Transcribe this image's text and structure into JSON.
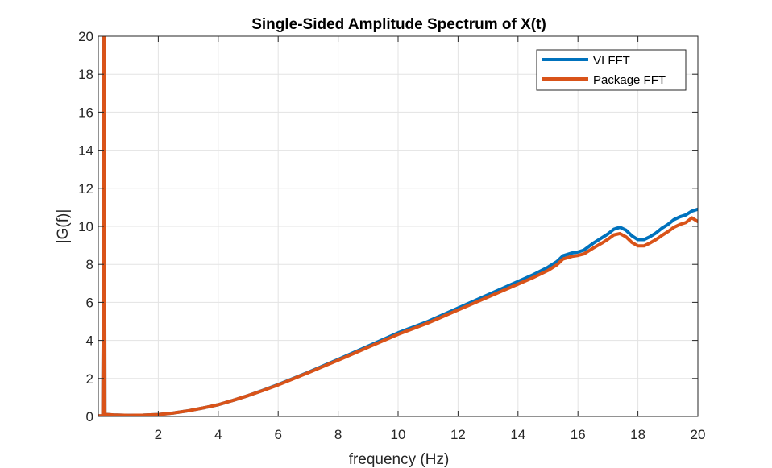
{
  "chart_data": {
    "type": "line",
    "title": "Single-Sided Amplitude Spectrum of X(t)",
    "xlabel": "frequency (Hz)",
    "ylabel": "|G(f)|",
    "xlim": [
      0,
      20
    ],
    "ylim": [
      0,
      20
    ],
    "xticks": [
      2,
      4,
      6,
      8,
      10,
      12,
      14,
      16,
      18,
      20
    ],
    "yticks": [
      0,
      2,
      4,
      6,
      8,
      10,
      12,
      14,
      16,
      18,
      20
    ],
    "grid": true,
    "legend_position": "top-right",
    "series": [
      {
        "name": "VI FFT",
        "color": "#0072BD",
        "x": [
          0.0,
          0.15,
          0.18,
          0.19,
          0.2,
          0.22,
          0.3,
          0.5,
          1.0,
          1.5,
          2.0,
          2.5,
          3.0,
          3.5,
          4.0,
          4.5,
          5.0,
          5.5,
          6.0,
          6.5,
          7.0,
          7.5,
          8.0,
          8.5,
          9.0,
          9.5,
          10.0,
          10.5,
          11.0,
          11.5,
          12.0,
          12.5,
          13.0,
          13.5,
          14.0,
          14.5,
          15.0,
          15.3,
          15.5,
          15.8,
          16.0,
          16.2,
          16.5,
          16.8,
          17.0,
          17.2,
          17.4,
          17.6,
          17.8,
          18.0,
          18.2,
          18.4,
          18.6,
          18.8,
          19.0,
          19.2,
          19.4,
          19.6,
          19.8,
          20.0
        ],
        "y": [
          0.03,
          0.03,
          10.0,
          20.5,
          20.5,
          0.1,
          0.1,
          0.08,
          0.06,
          0.07,
          0.1,
          0.18,
          0.3,
          0.45,
          0.62,
          0.85,
          1.1,
          1.38,
          1.68,
          2.0,
          2.32,
          2.66,
          3.0,
          3.35,
          3.7,
          4.05,
          4.4,
          4.7,
          5.0,
          5.35,
          5.7,
          6.05,
          6.4,
          6.75,
          7.1,
          7.45,
          7.85,
          8.15,
          8.45,
          8.6,
          8.65,
          8.75,
          9.1,
          9.4,
          9.6,
          9.85,
          9.95,
          9.8,
          9.5,
          9.3,
          9.3,
          9.45,
          9.65,
          9.9,
          10.1,
          10.35,
          10.5,
          10.6,
          10.8,
          10.9
        ]
      },
      {
        "name": "Package FFT",
        "color": "#D95319",
        "x": [
          0.0,
          0.15,
          0.18,
          0.19,
          0.2,
          0.22,
          0.3,
          0.5,
          1.0,
          1.5,
          2.0,
          2.5,
          3.0,
          3.5,
          4.0,
          4.5,
          5.0,
          5.5,
          6.0,
          6.5,
          7.0,
          7.5,
          8.0,
          8.5,
          9.0,
          9.5,
          10.0,
          10.5,
          11.0,
          11.5,
          12.0,
          12.5,
          13.0,
          13.5,
          14.0,
          14.5,
          15.0,
          15.3,
          15.5,
          15.8,
          16.0,
          16.2,
          16.5,
          16.8,
          17.0,
          17.2,
          17.4,
          17.6,
          17.8,
          18.0,
          18.2,
          18.4,
          18.6,
          18.8,
          19.0,
          19.2,
          19.4,
          19.6,
          19.8,
          20.0
        ],
        "y": [
          0.03,
          0.03,
          10.0,
          20.5,
          20.5,
          0.1,
          0.1,
          0.08,
          0.06,
          0.07,
          0.1,
          0.18,
          0.3,
          0.45,
          0.62,
          0.85,
          1.1,
          1.37,
          1.66,
          1.98,
          2.3,
          2.63,
          2.96,
          3.3,
          3.64,
          3.98,
          4.32,
          4.62,
          4.92,
          5.26,
          5.6,
          5.94,
          6.28,
          6.62,
          6.96,
          7.3,
          7.68,
          7.98,
          8.28,
          8.42,
          8.47,
          8.55,
          8.85,
          9.12,
          9.32,
          9.55,
          9.62,
          9.45,
          9.15,
          8.97,
          8.97,
          9.12,
          9.3,
          9.52,
          9.72,
          9.95,
          10.1,
          10.2,
          10.45,
          10.25
        ]
      }
    ]
  }
}
